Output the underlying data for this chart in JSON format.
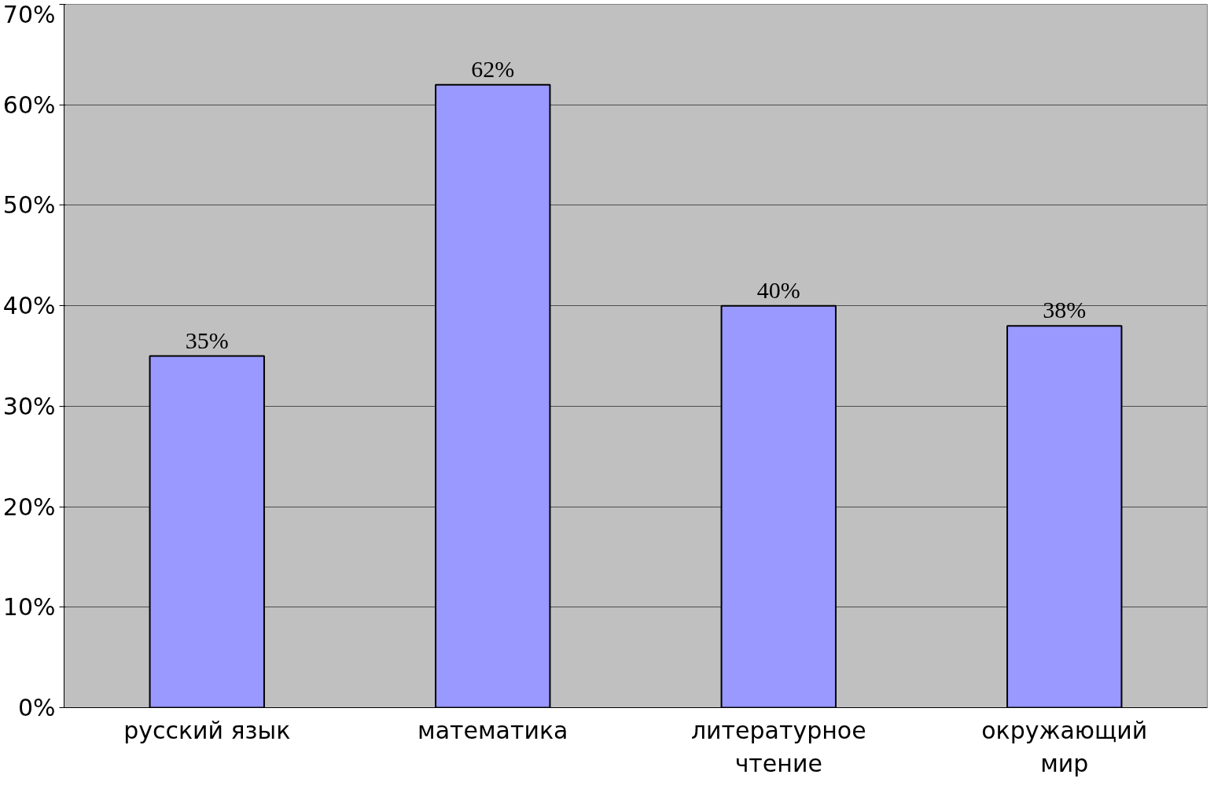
{
  "chart_data": {
    "type": "bar",
    "categories": [
      "русский язык",
      "математика",
      "литературное\nчтение",
      "окружающий\nмир"
    ],
    "values": [
      35,
      62,
      40,
      38
    ],
    "value_labels": [
      "35%",
      "62%",
      "40%",
      "38%"
    ],
    "color": "#9999ff",
    "ylim": [
      0,
      70
    ],
    "yticks": [
      {
        "value": 0,
        "label": "0%"
      },
      {
        "value": 10,
        "label": "10%"
      },
      {
        "value": 20,
        "label": "20%"
      },
      {
        "value": 30,
        "label": "30%"
      },
      {
        "value": 40,
        "label": "40%"
      },
      {
        "value": 50,
        "label": "50%"
      },
      {
        "value": 60,
        "label": "60%"
      },
      {
        "value": 70,
        "label": "70%"
      }
    ],
    "grid": "y"
  }
}
